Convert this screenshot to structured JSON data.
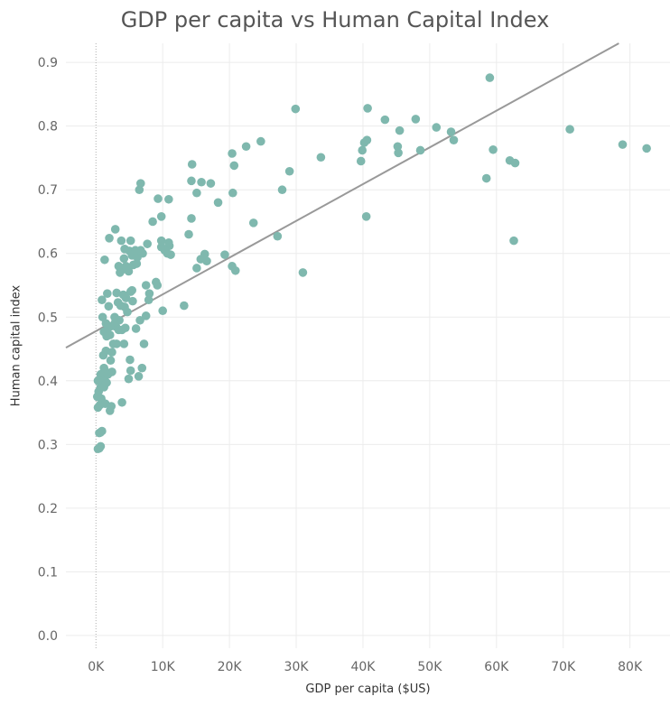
{
  "chart_data": {
    "type": "scatter",
    "title": "GDP per capita vs Human Capital Index",
    "xlabel": "GDP per capita ($US)",
    "ylabel": "Human capital index",
    "xlim": [
      -4500,
      86000
    ],
    "ylim": [
      -0.02,
      0.93
    ],
    "x_ticks": [
      0,
      10000,
      20000,
      30000,
      40000,
      50000,
      60000,
      70000,
      80000
    ],
    "x_tick_labels": [
      "0K",
      "10K",
      "20K",
      "30K",
      "40K",
      "50K",
      "60K",
      "70K",
      "80K"
    ],
    "y_ticks": [
      0.0,
      0.1,
      0.2,
      0.3,
      0.4,
      0.5,
      0.6,
      0.7,
      0.8,
      0.9
    ],
    "y_tick_labels": [
      "0.0",
      "0.1",
      "0.2",
      "0.3",
      "0.4",
      "0.5",
      "0.6",
      "0.7",
      "0.8",
      "0.9"
    ],
    "grid": true,
    "trendline": {
      "type": "linear",
      "intercept": 0.478,
      "slope_per_10k": 0.0577
    },
    "colors": {
      "point": "#7fb8ae",
      "trendline": "#999999",
      "grid": "#ececec",
      "zero_line": "#b0b0b0",
      "title": "#555555",
      "axis_text": "#666666"
    },
    "points": [
      [
        300,
        0.293
      ],
      [
        500,
        0.294
      ],
      [
        700,
        0.297
      ],
      [
        500,
        0.318
      ],
      [
        700,
        0.319
      ],
      [
        900,
        0.321
      ],
      [
        300,
        0.358
      ],
      [
        600,
        0.362
      ],
      [
        200,
        0.375
      ],
      [
        800,
        0.372
      ],
      [
        1000,
        0.366
      ],
      [
        1400,
        0.364
      ],
      [
        2100,
        0.353
      ],
      [
        2300,
        0.36
      ],
      [
        3900,
        0.366
      ],
      [
        400,
        0.383
      ],
      [
        700,
        0.39
      ],
      [
        900,
        0.395
      ],
      [
        1200,
        0.39
      ],
      [
        500,
        0.401
      ],
      [
        900,
        0.405
      ],
      [
        1300,
        0.401
      ],
      [
        1600,
        0.397
      ],
      [
        300,
        0.4
      ],
      [
        700,
        0.41
      ],
      [
        1100,
        0.412
      ],
      [
        1400,
        0.415
      ],
      [
        1200,
        0.42
      ],
      [
        1800,
        0.41
      ],
      [
        2400,
        0.414
      ],
      [
        2200,
        0.432
      ],
      [
        4900,
        0.403
      ],
      [
        5200,
        0.416
      ],
      [
        6400,
        0.407
      ],
      [
        6900,
        0.42
      ],
      [
        5100,
        0.433
      ],
      [
        1100,
        0.44
      ],
      [
        1500,
        0.447
      ],
      [
        2400,
        0.445
      ],
      [
        2600,
        0.458
      ],
      [
        3100,
        0.458
      ],
      [
        4200,
        0.458
      ],
      [
        7200,
        0.458
      ],
      [
        1200,
        0.477
      ],
      [
        1600,
        0.47
      ],
      [
        2100,
        0.472
      ],
      [
        1900,
        0.484
      ],
      [
        2400,
        0.486
      ],
      [
        3000,
        0.485
      ],
      [
        3400,
        0.48
      ],
      [
        3900,
        0.48
      ],
      [
        4400,
        0.483
      ],
      [
        6000,
        0.482
      ],
      [
        1000,
        0.5
      ],
      [
        1500,
        0.49
      ],
      [
        2900,
        0.492
      ],
      [
        3500,
        0.495
      ],
      [
        2800,
        0.5
      ],
      [
        6600,
        0.495
      ],
      [
        7500,
        0.502
      ],
      [
        900,
        0.527
      ],
      [
        1900,
        0.517
      ],
      [
        4700,
        0.508
      ],
      [
        1700,
        0.537
      ],
      [
        3300,
        0.523
      ],
      [
        3700,
        0.518
      ],
      [
        4300,
        0.516
      ],
      [
        4500,
        0.53
      ],
      [
        5500,
        0.525
      ],
      [
        3100,
        0.538
      ],
      [
        4100,
        0.535
      ],
      [
        5200,
        0.54
      ],
      [
        5400,
        0.542
      ],
      [
        7900,
        0.527
      ],
      [
        8000,
        0.537
      ],
      [
        9200,
        0.55
      ],
      [
        10000,
        0.51
      ],
      [
        13200,
        0.518
      ],
      [
        7500,
        0.55
      ],
      [
        9000,
        0.555
      ],
      [
        3600,
        0.57
      ],
      [
        4000,
        0.575
      ],
      [
        4900,
        0.572
      ],
      [
        3400,
        0.58
      ],
      [
        4500,
        0.58
      ],
      [
        5600,
        0.582
      ],
      [
        6100,
        0.584
      ],
      [
        5400,
        0.597
      ],
      [
        4200,
        0.592
      ],
      [
        6200,
        0.594
      ],
      [
        7000,
        0.6
      ],
      [
        1300,
        0.59
      ],
      [
        4300,
        0.607
      ],
      [
        5000,
        0.604
      ],
      [
        5900,
        0.605
      ],
      [
        6700,
        0.605
      ],
      [
        5200,
        0.62
      ],
      [
        3800,
        0.62
      ],
      [
        2000,
        0.624
      ],
      [
        2900,
        0.638
      ],
      [
        7700,
        0.615
      ],
      [
        9800,
        0.61
      ],
      [
        9800,
        0.62
      ],
      [
        10700,
        0.6
      ],
      [
        11200,
        0.598
      ],
      [
        11000,
        0.612
      ],
      [
        10900,
        0.617
      ],
      [
        10300,
        0.605
      ],
      [
        13900,
        0.63
      ],
      [
        15100,
        0.577
      ],
      [
        15700,
        0.591
      ],
      [
        16600,
        0.588
      ],
      [
        16300,
        0.599
      ],
      [
        19300,
        0.598
      ],
      [
        20400,
        0.58
      ],
      [
        20900,
        0.573
      ],
      [
        27200,
        0.627
      ],
      [
        31000,
        0.57
      ],
      [
        8500,
        0.65
      ],
      [
        9800,
        0.658
      ],
      [
        14300,
        0.655
      ],
      [
        23600,
        0.648
      ],
      [
        6500,
        0.7
      ],
      [
        6700,
        0.71
      ],
      [
        9300,
        0.686
      ],
      [
        10900,
        0.685
      ],
      [
        14300,
        0.714
      ],
      [
        15100,
        0.695
      ],
      [
        15800,
        0.712
      ],
      [
        17200,
        0.71
      ],
      [
        18300,
        0.68
      ],
      [
        20500,
        0.695
      ],
      [
        14400,
        0.74
      ],
      [
        20700,
        0.738
      ],
      [
        20400,
        0.757
      ],
      [
        22500,
        0.768
      ],
      [
        24700,
        0.776
      ],
      [
        27900,
        0.7
      ],
      [
        29000,
        0.729
      ],
      [
        33700,
        0.751
      ],
      [
        29900,
        0.827
      ],
      [
        39700,
        0.745
      ],
      [
        39900,
        0.762
      ],
      [
        40200,
        0.774
      ],
      [
        40600,
        0.778
      ],
      [
        40500,
        0.658
      ],
      [
        40700,
        0.828
      ],
      [
        43300,
        0.81
      ],
      [
        45200,
        0.768
      ],
      [
        45300,
        0.758
      ],
      [
        45500,
        0.793
      ],
      [
        47900,
        0.811
      ],
      [
        48600,
        0.762
      ],
      [
        51000,
        0.798
      ],
      [
        53200,
        0.791
      ],
      [
        53600,
        0.778
      ],
      [
        58500,
        0.718
      ],
      [
        59000,
        0.876
      ],
      [
        59500,
        0.763
      ],
      [
        62000,
        0.746
      ],
      [
        62600,
        0.62
      ],
      [
        62800,
        0.742
      ],
      [
        71000,
        0.795
      ],
      [
        78900,
        0.771
      ],
      [
        82500,
        0.765
      ]
    ]
  }
}
